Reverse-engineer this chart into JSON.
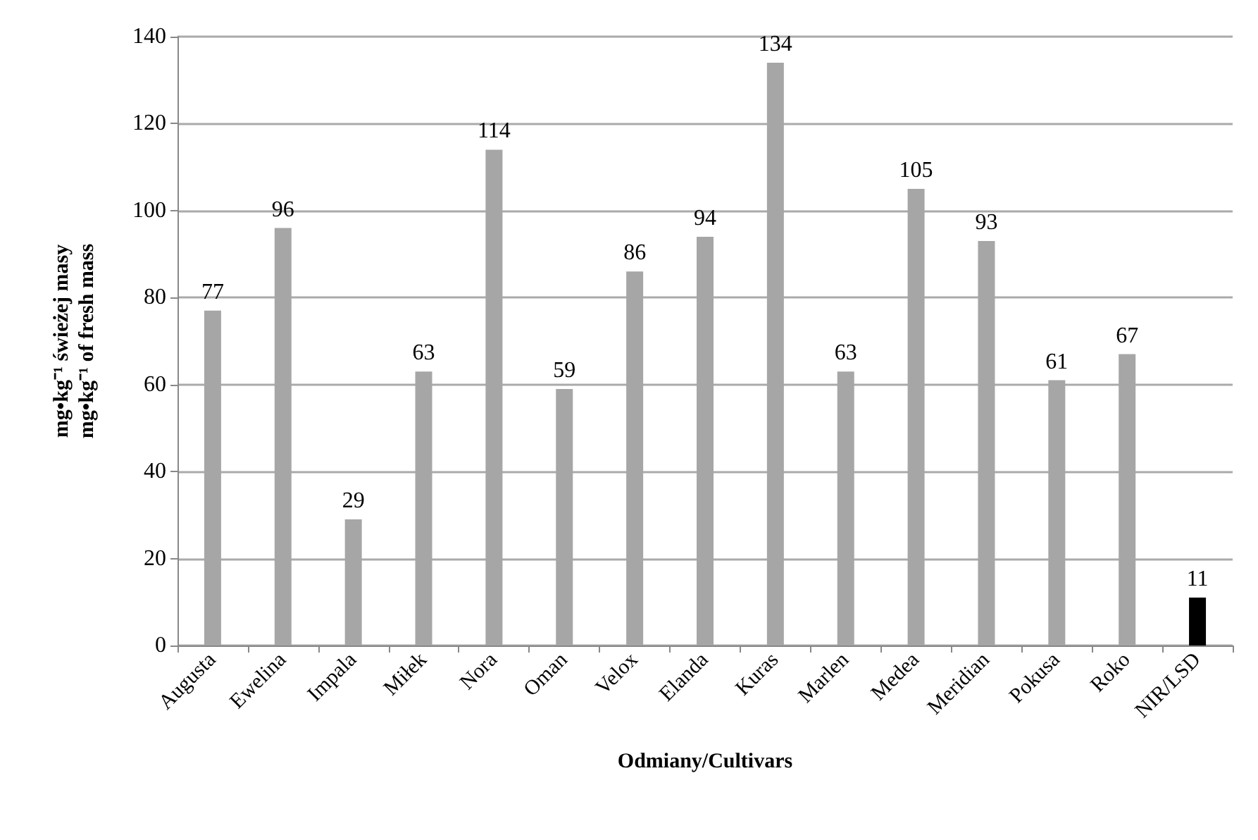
{
  "chart_data": {
    "type": "bar",
    "ylabel": "mg•kg⁻¹ świeżej masy\nmg•kg⁻¹ of fresh mass",
    "xlabel": "Odmiany/Cultivars",
    "categories": [
      "Augusta",
      "Ewelina",
      "Impala",
      "Miłek",
      "Nora",
      "Oman",
      "Velox",
      "Elanda",
      "Kuras",
      "Marlen",
      "Medea",
      "Meridian",
      "Pokusa",
      "Roko",
      "NIR/LSD"
    ],
    "values": [
      77,
      96,
      29,
      63,
      114,
      59,
      86,
      94,
      134,
      63,
      105,
      93,
      61,
      67,
      11
    ],
    "colors": [
      "#a6a6a6",
      "#a6a6a6",
      "#a6a6a6",
      "#a6a6a6",
      "#a6a6a6",
      "#a6a6a6",
      "#a6a6a6",
      "#a6a6a6",
      "#a6a6a6",
      "#a6a6a6",
      "#a6a6a6",
      "#a6a6a6",
      "#a6a6a6",
      "#a6a6a6",
      "#000000"
    ],
    "ylim": [
      0,
      140
    ],
    "yticks": [
      0,
      20,
      40,
      60,
      80,
      100,
      120,
      140
    ],
    "grid": "y",
    "data_labels": true
  }
}
